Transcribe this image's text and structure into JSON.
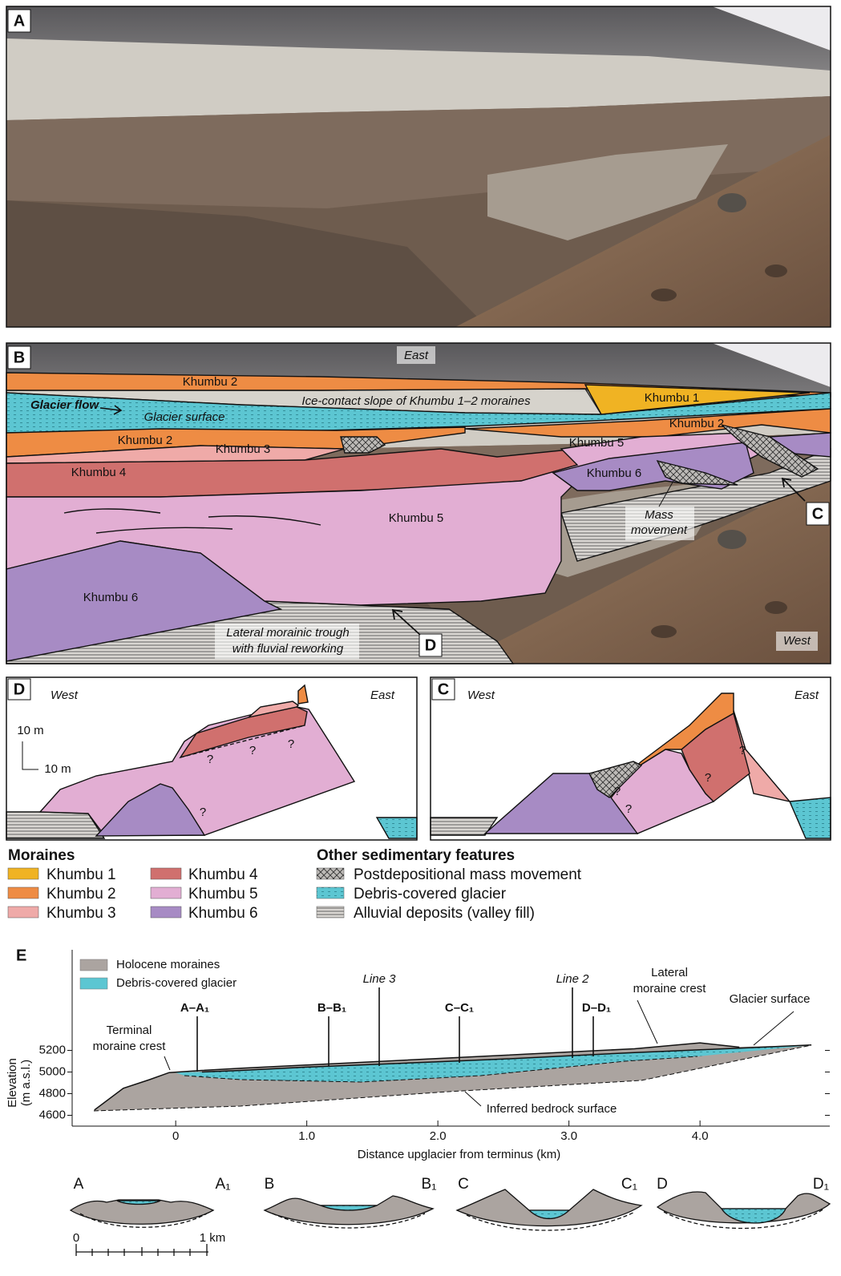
{
  "panel_a": {
    "label": "A"
  },
  "panel_b": {
    "label": "B",
    "east": "East",
    "west": "West",
    "glacier_flow": "Glacier flow",
    "glacier_surface": "Glacier surface",
    "ice_contact": "Ice-contact slope of Khumbu 1–2 moraines",
    "units": [
      "Khumbu 2",
      "Khumbu 1",
      "Khumbu 2",
      "Khumbu 2",
      "Khumbu 3",
      "Khumbu 4",
      "Khumbu 5",
      "Khumbu 5",
      "Khumbu 6",
      "Khumbu 6"
    ],
    "mass_movement": [
      "Mass",
      "movement"
    ],
    "trough": [
      "Lateral morainic trough",
      "with fluvial reworking"
    ],
    "markers": [
      "C",
      "D"
    ]
  },
  "panel_d": {
    "label": "D",
    "west": "West",
    "east": "East",
    "scale_v": "10 m",
    "scale_h": "10 m",
    "queries": [
      "?",
      "?",
      "?",
      "?"
    ]
  },
  "panel_c": {
    "label": "C",
    "west": "West",
    "east": "East",
    "queries": [
      "?",
      "?",
      "?",
      "?"
    ]
  },
  "legend": {
    "moraines": {
      "title": "Moraines",
      "items": [
        "Khumbu 1",
        "Khumbu 2",
        "Khumbu 3",
        "Khumbu 4",
        "Khumbu 5",
        "Khumbu 6"
      ]
    },
    "other": {
      "title": "Other sedimentary features",
      "items": [
        "Postdepositional mass movement",
        "Debris-covered glacier",
        "Alluvial deposits (valley fill)"
      ]
    }
  },
  "chart_data": {
    "type": "line",
    "label": "E",
    "xlabel": "Distance upglacier from terminus (km)",
    "ylabel": [
      "Elevation",
      "(m a.s.l.)"
    ],
    "x": [
      -0.62,
      -0.4,
      -0.2,
      -0.05,
      0.2,
      0.5,
      1.0,
      1.5,
      2.0,
      2.5,
      3.0,
      3.5,
      4.0,
      4.3,
      4.85
    ],
    "series": [
      {
        "name": "Holocene moraines",
        "color": "#aba4a0",
        "values": [
          4650,
          4850,
          4930,
          4995,
          5015,
          5035,
          5065,
          5095,
          5125,
          5155,
          5185,
          5215,
          5270,
          5230,
          null
        ]
      },
      {
        "name": "Debris-covered glacier",
        "color": "#5cc6d2",
        "values": [
          null,
          null,
          null,
          null,
          5000,
          5015,
          5045,
          5070,
          5095,
          5120,
          5150,
          5180,
          5205,
          5220,
          5250
        ]
      }
    ],
    "xlim": [
      -0.79,
      4.99
    ],
    "ylim": [
      4500,
      6130
    ],
    "xticks": [
      0,
      {
        "value": 1,
        "label": "1.0"
      },
      {
        "value": 2,
        "label": "2.0"
      },
      {
        "value": 3,
        "label": "3.0"
      },
      {
        "value": 4,
        "label": "4.0"
      }
    ],
    "yticks": [
      4600,
      4800,
      5000,
      5200
    ],
    "annotations": {
      "terminal": [
        "Terminal",
        "moraine crest"
      ],
      "lateral": [
        "Lateral",
        "moraine crest"
      ],
      "glacier_surface": "Glacier surface",
      "bedrock": "Inferred bedrock surface",
      "line3": "Line 3",
      "line2": "Line 2",
      "sections": [
        "A–A₁",
        "B–B₁",
        "C–C₁",
        "D–D₁"
      ]
    }
  },
  "profiles": [
    {
      "start": "A",
      "end": "A₁"
    },
    {
      "start": "B",
      "end": "B₁"
    },
    {
      "start": "C",
      "end": "C₁"
    },
    {
      "start": "D",
      "end": "D₁"
    }
  ],
  "scale": [
    "0",
    "1 km"
  ]
}
